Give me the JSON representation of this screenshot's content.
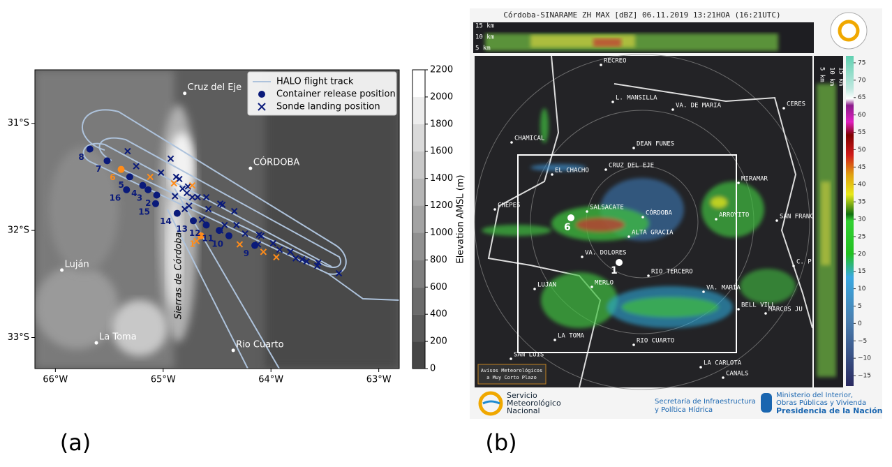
{
  "panel_a": {
    "label": "(a)",
    "xlim": [
      -66.19,
      -62.81
    ],
    "ylim": [
      -33.29,
      -30.5
    ],
    "xticks": [
      {
        "value": -66,
        "label": "66°W"
      },
      {
        "value": -65,
        "label": "65°W"
      },
      {
        "value": -64,
        "label": "64°W"
      },
      {
        "value": -63,
        "label": "63°W"
      }
    ],
    "yticks": [
      {
        "value": -31,
        "label": "31°S"
      },
      {
        "value": -32,
        "label": "32°S"
      },
      {
        "value": -33,
        "label": "33°S"
      }
    ],
    "relief_label": "Sierras de Córdoba",
    "cities": [
      {
        "name": "Cruz del Eje",
        "lon": -64.8,
        "lat": -30.72
      },
      {
        "name": "CÓRDOBA",
        "lon": -64.19,
        "lat": -31.42
      },
      {
        "name": "Luján",
        "lon": -65.94,
        "lat": -32.37
      },
      {
        "name": "La Toma",
        "lon": -65.62,
        "lat": -33.05
      },
      {
        "name": "Rio Cuarto",
        "lon": -64.35,
        "lat": -33.12
      }
    ],
    "legend": [
      "HALO flight track",
      "Container release position",
      "Sonde landing position"
    ],
    "track_color": "#aec3dc",
    "releases": [
      {
        "label": "1",
        "lon": -64.65,
        "lat": -32.05,
        "color": "#ff8c1a"
      },
      {
        "label": "2",
        "lon": -65.06,
        "lat": -31.67,
        "color": "#0a1a7a"
      },
      {
        "label": "3",
        "lon": -65.14,
        "lat": -31.62,
        "color": "#0a1a7a"
      },
      {
        "label": "4",
        "lon": -65.19,
        "lat": -31.58,
        "color": "#0a1a7a"
      },
      {
        "label": "5",
        "lon": -65.31,
        "lat": -31.5,
        "color": "#0a1a7a"
      },
      {
        "label": "6",
        "lon": -65.39,
        "lat": -31.43,
        "color": "#ff8c1a"
      },
      {
        "label": "7",
        "lon": -65.52,
        "lat": -31.35,
        "color": "#0a1a7a"
      },
      {
        "label": "8",
        "lon": -65.68,
        "lat": -31.24,
        "color": "#0a1a7a"
      },
      {
        "label": "9",
        "lon": -64.15,
        "lat": -32.14,
        "color": "#0a1a7a"
      },
      {
        "label": "10",
        "lon": -64.39,
        "lat": -32.05,
        "color": "#0a1a7a"
      },
      {
        "label": "11",
        "lon": -64.48,
        "lat": -32.0,
        "color": "#0a1a7a"
      },
      {
        "label": "12",
        "lon": -64.6,
        "lat": -31.95,
        "color": "#0a1a7a"
      },
      {
        "label": "13",
        "lon": -64.72,
        "lat": -31.91,
        "color": "#0a1a7a"
      },
      {
        "label": "14",
        "lon": -64.87,
        "lat": -31.84,
        "color": "#0a1a7a"
      },
      {
        "label": "15",
        "lon": -65.07,
        "lat": -31.75,
        "color": "#0a1a7a"
      },
      {
        "label": "16",
        "lon": -65.34,
        "lat": -31.62,
        "color": "#0a1a7a"
      }
    ],
    "sondes": [
      {
        "lon": -65.33,
        "lat": -31.26,
        "color": "#0a1a7a"
      },
      {
        "lon": -65.25,
        "lat": -31.4,
        "color": "#0a1a7a"
      },
      {
        "lon": -64.93,
        "lat": -31.33,
        "color": "#0a1a7a"
      },
      {
        "lon": -65.02,
        "lat": -31.46,
        "color": "#0a1a7a"
      },
      {
        "lon": -64.88,
        "lat": -31.5,
        "color": "#0a1a7a"
      },
      {
        "lon": -64.85,
        "lat": -31.52,
        "color": "#0a1a7a"
      },
      {
        "lon": -64.82,
        "lat": -31.61,
        "color": "#0a1a7a"
      },
      {
        "lon": -64.77,
        "lat": -31.59,
        "color": "#0a1a7a"
      },
      {
        "lon": -64.89,
        "lat": -31.68,
        "color": "#0a1a7a"
      },
      {
        "lon": -64.78,
        "lat": -31.65,
        "color": "#0a1a7a"
      },
      {
        "lon": -64.73,
        "lat": -31.69,
        "color": "#0a1a7a"
      },
      {
        "lon": -64.68,
        "lat": -31.69,
        "color": "#0a1a7a"
      },
      {
        "lon": -64.6,
        "lat": -31.69,
        "color": "#0a1a7a"
      },
      {
        "lon": -64.76,
        "lat": -31.77,
        "color": "#0a1a7a"
      },
      {
        "lon": -64.8,
        "lat": -31.8,
        "color": "#0a1a7a"
      },
      {
        "lon": -64.58,
        "lat": -31.8,
        "color": "#0a1a7a"
      },
      {
        "lon": -64.64,
        "lat": -31.9,
        "color": "#0a1a7a"
      },
      {
        "lon": -64.47,
        "lat": -31.75,
        "color": "#0a1a7a"
      },
      {
        "lon": -64.45,
        "lat": -31.76,
        "color": "#0a1a7a"
      },
      {
        "lon": -64.47,
        "lat": -32.0,
        "color": "#0a1a7a"
      },
      {
        "lon": -64.43,
        "lat": -31.95,
        "color": "#0a1a7a"
      },
      {
        "lon": -64.34,
        "lat": -31.82,
        "color": "#0a1a7a"
      },
      {
        "lon": -64.32,
        "lat": -31.95,
        "color": "#0a1a7a"
      },
      {
        "lon": -64.24,
        "lat": -32.03,
        "color": "#0a1a7a"
      },
      {
        "lon": -64.11,
        "lat": -32.04,
        "color": "#0a1a7a"
      },
      {
        "lon": -64.09,
        "lat": -32.05,
        "color": "#0a1a7a"
      },
      {
        "lon": -64.12,
        "lat": -32.13,
        "color": "#0a1a7a"
      },
      {
        "lon": -63.98,
        "lat": -32.12,
        "color": "#0a1a7a"
      },
      {
        "lon": -63.92,
        "lat": -32.18,
        "color": "#0a1a7a"
      },
      {
        "lon": -63.82,
        "lat": -32.2,
        "color": "#0a1a7a"
      },
      {
        "lon": -63.77,
        "lat": -32.26,
        "color": "#0a1a7a"
      },
      {
        "lon": -63.71,
        "lat": -32.27,
        "color": "#0a1a7a"
      },
      {
        "lon": -63.67,
        "lat": -32.29,
        "color": "#0a1a7a"
      },
      {
        "lon": -63.56,
        "lat": -32.3,
        "color": "#0a1a7a"
      },
      {
        "lon": -63.57,
        "lat": -32.33,
        "color": "#0a1a7a"
      },
      {
        "lon": -63.37,
        "lat": -32.4,
        "color": "#0a1a7a"
      },
      {
        "lon": -65.12,
        "lat": -31.5,
        "color": "#ff8c1a"
      },
      {
        "lon": -64.73,
        "lat": -31.58,
        "color": "#ff8c1a"
      },
      {
        "lon": -64.9,
        "lat": -31.56,
        "color": "#ff8c1a"
      },
      {
        "lon": -64.29,
        "lat": -32.13,
        "color": "#ff8c1a"
      },
      {
        "lon": -64.07,
        "lat": -32.2,
        "color": "#ff8c1a"
      },
      {
        "lon": -63.95,
        "lat": -32.25,
        "color": "#ff8c1a"
      },
      {
        "lon": -64.69,
        "lat": -32.1,
        "color": "#ff8c1a"
      }
    ],
    "colorbar": {
      "label": "Elevation AMSL (m)",
      "lim": [
        0,
        2200
      ],
      "ticks": [
        0,
        200,
        400,
        600,
        800,
        1000,
        1200,
        1400,
        1600,
        1800,
        2000,
        2200
      ]
    }
  },
  "panel_b": {
    "label": "(b)",
    "title": "Córdoba-SINARAME ZH MAX [dBZ] 06.11.2019 13:21HOA (16:21UTC)",
    "heights": [
      "15 km",
      "10 km",
      "5 km"
    ],
    "cities": [
      "RECREO",
      "L. MANSILLA",
      "VA. DE MARIA",
      "CERES",
      "CHAMICAL",
      "DEAN FUNES",
      "EL CHACHO",
      "CRUZ DEL EJE",
      "MIRAMAR",
      "CHEPES",
      "SALSACATE",
      "CÓRDOBA",
      "ARROYITO",
      "SAN FRANC",
      "ALTA GRACIA",
      "VA. DOLORES",
      "C. P",
      "RIO TERCERO",
      "LUJAN",
      "MERLO",
      "VA. MARIA",
      "BELL VILL",
      "MARCOS JU",
      "LA TOMA",
      "RIO CUARTO",
      "SAN LUIS",
      "LA CARLOTA",
      "CANALS"
    ],
    "markers": [
      "6",
      "1"
    ],
    "warning": [
      "Avisos Meteorológicos",
      "a Muy Corto Plazo"
    ],
    "colorbar": {
      "lim": [
        -18,
        77
      ],
      "ticks": [
        75,
        70,
        65,
        60,
        55,
        50,
        45,
        40,
        35,
        30,
        25,
        20,
        15,
        10,
        5,
        0,
        {
          "value": -5,
          "label": "−5"
        },
        {
          "value": -10,
          "label": "−10"
        },
        {
          "value": -15,
          "label": "−15"
        }
      ]
    },
    "logo_smn": [
      "Servicio",
      "Meteorológico",
      "Nacional"
    ],
    "logo_secretaria": [
      "Secretaría de Infraestructura",
      "y Política Hídrica"
    ],
    "logo_ministerio": [
      "Ministerio del Interior,",
      "Obras Públicas y Vivienda",
      "Presidencia de la Nación"
    ]
  }
}
